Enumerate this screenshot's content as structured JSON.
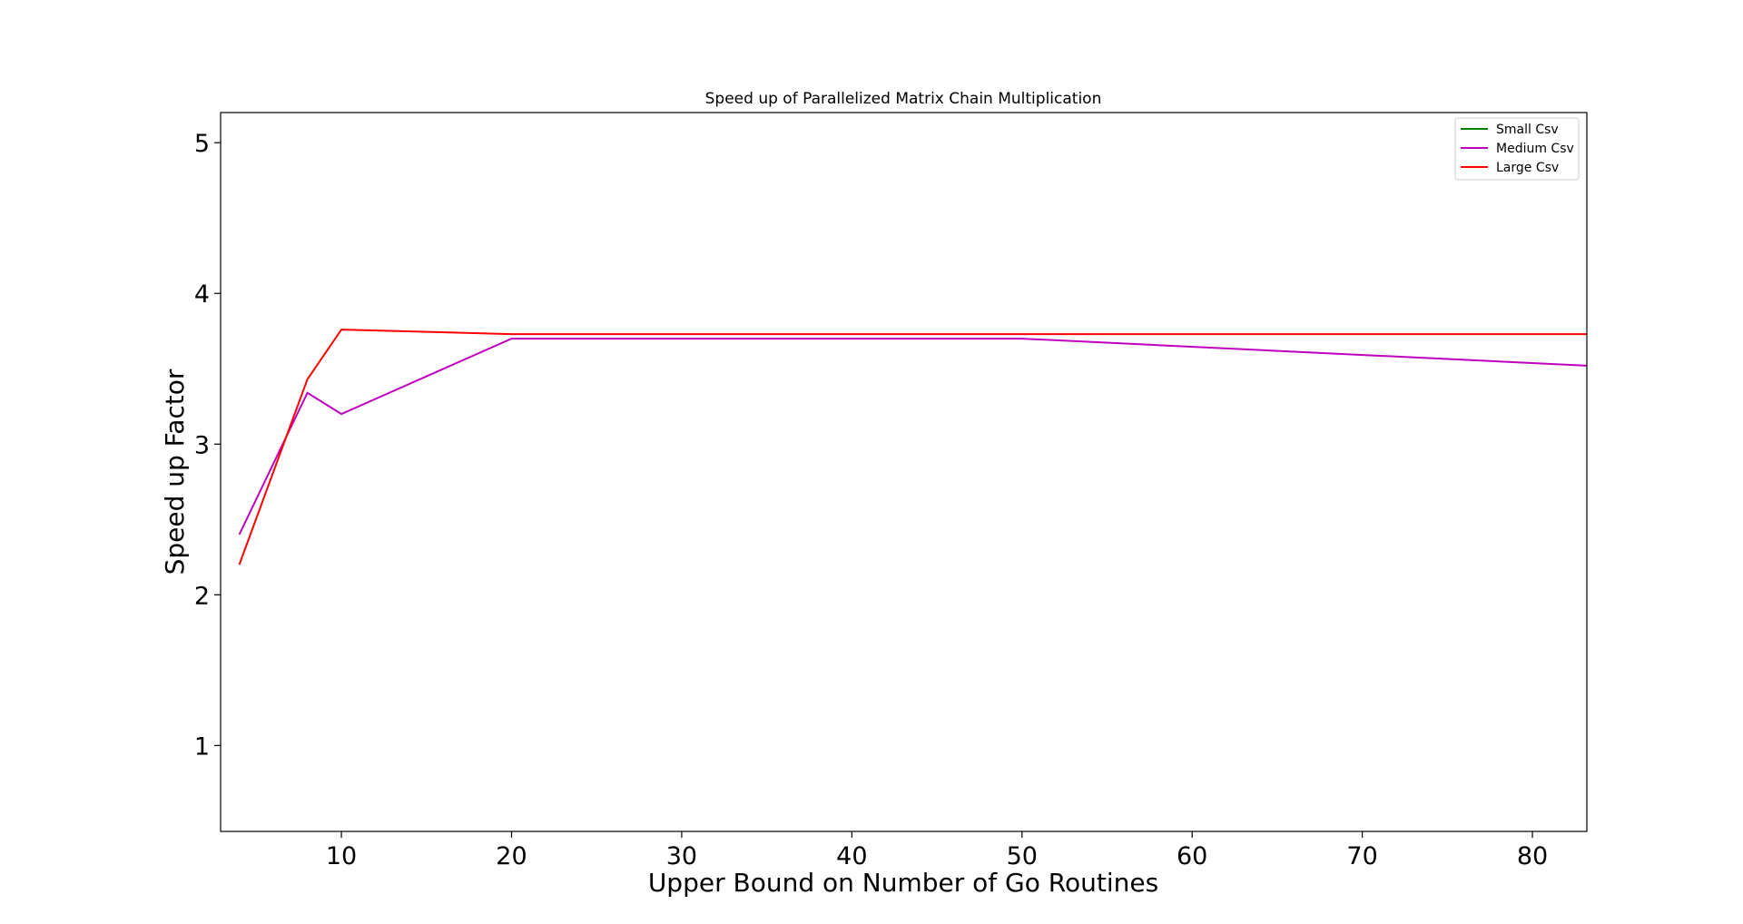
{
  "chart_data": {
    "type": "line",
    "title": "Speed up of Parallelized Matrix Chain Multiplication",
    "xlabel": "Upper Bound on Number of Go Routines",
    "ylabel": "Speed up Factor",
    "xlim": [
      2.9,
      83.2
    ],
    "ylim": [
      0.43,
      5.2
    ],
    "xticks": [
      10,
      20,
      30,
      40,
      50,
      60,
      70,
      80
    ],
    "yticks": [
      1,
      2,
      3,
      4,
      5
    ],
    "grid": false,
    "legend_position": "top-right",
    "series": [
      {
        "name": "Small Csv",
        "color": "#008000",
        "x": [],
        "y": []
      },
      {
        "name": "Medium Csv",
        "color": "#bf00bf",
        "x": [
          4,
          8,
          10,
          20,
          50,
          83.2
        ],
        "y": [
          2.4,
          3.34,
          3.2,
          3.7,
          3.7,
          3.52
        ]
      },
      {
        "name": "Large Csv",
        "color": "#ff0000",
        "x": [
          4,
          8,
          10,
          20,
          50,
          83.2
        ],
        "y": [
          2.2,
          3.43,
          3.76,
          3.73,
          3.73,
          3.73
        ]
      }
    ]
  }
}
